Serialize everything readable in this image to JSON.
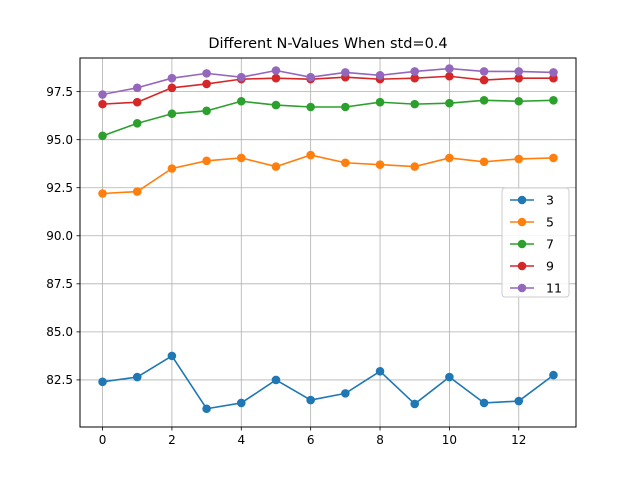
{
  "chart_data": {
    "type": "line",
    "title": "Different N-Values When std=0.4",
    "xlabel": "",
    "ylabel": "",
    "x": [
      0,
      1,
      2,
      3,
      4,
      5,
      6,
      7,
      8,
      9,
      10,
      11,
      12,
      13
    ],
    "xlim": [
      -0.65,
      13.65
    ],
    "ylim": [
      80.05,
      99.25
    ],
    "xticks": [
      0,
      2,
      4,
      6,
      8,
      10,
      12
    ],
    "xtick_labels": [
      "0",
      "2",
      "4",
      "6",
      "8",
      "10",
      "12"
    ],
    "yticks": [
      82.5,
      85.0,
      87.5,
      90.0,
      92.5,
      95.0,
      97.5
    ],
    "ytick_labels": [
      "82.5",
      "85.0",
      "87.5",
      "90.0",
      "92.5",
      "95.0",
      "97.5"
    ],
    "grid": true,
    "legend_position": "center-right",
    "series": [
      {
        "name": "3",
        "color": "#1f77b4",
        "values": [
          82.4,
          82.65,
          83.75,
          81.0,
          81.3,
          82.5,
          81.45,
          81.8,
          82.95,
          81.25,
          82.65,
          81.3,
          81.4,
          82.75
        ]
      },
      {
        "name": "5",
        "color": "#ff7f0e",
        "values": [
          92.2,
          92.3,
          93.5,
          93.9,
          94.05,
          93.6,
          94.2,
          93.8,
          93.7,
          93.6,
          94.05,
          93.85,
          94.0,
          94.05
        ]
      },
      {
        "name": "7",
        "color": "#2ca02c",
        "values": [
          95.2,
          95.85,
          96.35,
          96.5,
          97.0,
          96.8,
          96.7,
          96.7,
          96.95,
          96.85,
          96.9,
          97.05,
          97.0,
          97.05
        ]
      },
      {
        "name": "9",
        "color": "#d62728",
        "values": [
          96.85,
          96.95,
          97.7,
          97.9,
          98.15,
          98.2,
          98.15,
          98.25,
          98.15,
          98.2,
          98.3,
          98.1,
          98.2,
          98.2
        ]
      },
      {
        "name": "11",
        "color": "#9467bd",
        "values": [
          97.35,
          97.7,
          98.2,
          98.45,
          98.25,
          98.6,
          98.25,
          98.5,
          98.35,
          98.55,
          98.7,
          98.55,
          98.55,
          98.5
        ]
      }
    ]
  }
}
